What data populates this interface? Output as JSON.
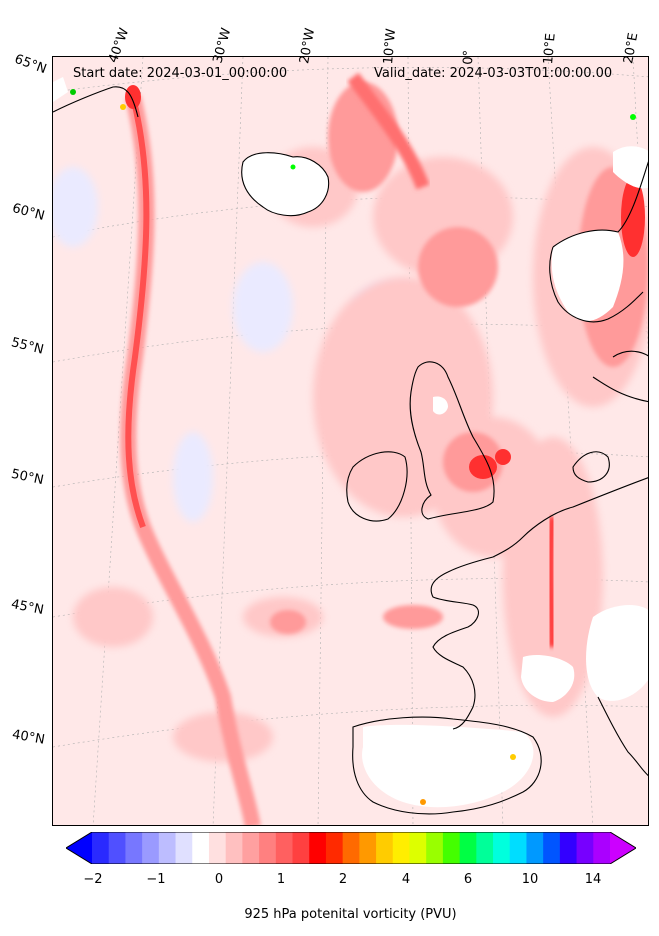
{
  "header": {
    "start_date": "Start date: 2024-03-01_00:00:00",
    "valid_date": "Valid_date: 2024-03-03T01:00:00.00"
  },
  "longitude_labels": [
    "40°W",
    "30°W",
    "20°W",
    "10°W",
    "0°",
    "10°E",
    "20°E"
  ],
  "latitude_labels": [
    "65°N",
    "60°N",
    "55°N",
    "50°N",
    "45°N",
    "40°N"
  ],
  "colorbar": {
    "ticks": [
      "−2",
      "−1",
      "0",
      "1",
      "2",
      "4",
      "6",
      "10",
      "14"
    ],
    "label": "925 hPa potenital vorticity (PVU)",
    "colors": [
      "#0000ff",
      "#2a2aff",
      "#5050ff",
      "#7777ff",
      "#9a9aff",
      "#bdbdff",
      "#e0e0ff",
      "#ffffff",
      "#ffe0e0",
      "#ffc0c0",
      "#ffa0a0",
      "#ff8080",
      "#ff6060",
      "#ff4040",
      "#ff0000",
      "#ff2a00",
      "#ff6a00",
      "#ff9900",
      "#ffcc00",
      "#ffee00",
      "#ddff00",
      "#99ff00",
      "#44ff00",
      "#00ff44",
      "#00ff99",
      "#00ffdd",
      "#00ddff",
      "#0099ff",
      "#0055ff",
      "#3300ff",
      "#7700ff",
      "#aa00ff",
      "#cc00ff"
    ]
  }
}
